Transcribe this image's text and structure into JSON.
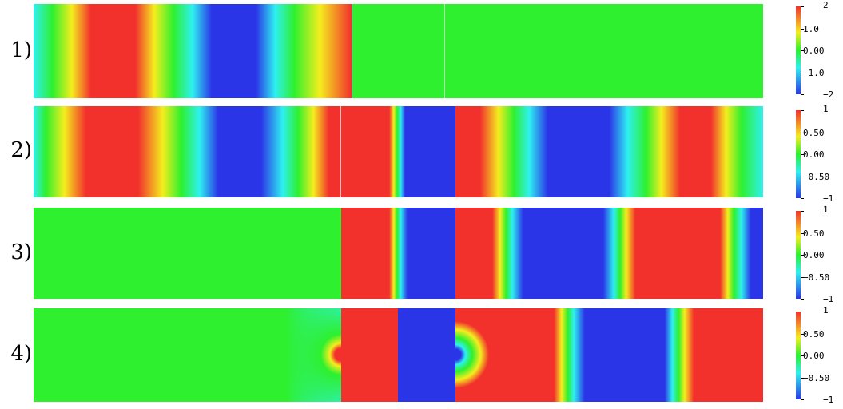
{
  "panels": [
    {
      "label": "1)",
      "colorbar": {
        "ticks": [
          "2",
          "1.0",
          "0.00",
          "−1.0",
          "−2"
        ]
      }
    },
    {
      "label": "2)",
      "colorbar": {
        "ticks": [
          "1",
          "0.50",
          "0.00",
          "−0.50",
          "−1"
        ]
      }
    },
    {
      "label": "3)",
      "colorbar": {
        "ticks": [
          "1",
          "0.50",
          "0.00",
          "−0.50",
          "−1"
        ]
      }
    },
    {
      "label": "4)",
      "colorbar": {
        "ticks": [
          "1",
          "0.50",
          "0.00",
          "−0.50",
          "−1"
        ]
      }
    }
  ],
  "colors": {
    "red": "#f2302c",
    "yellow": "#f4ee1e",
    "green": "#2ef02e",
    "cyan": "#2ef0f0",
    "blue": "#2b35e8",
    "white": "#ffffff"
  }
}
